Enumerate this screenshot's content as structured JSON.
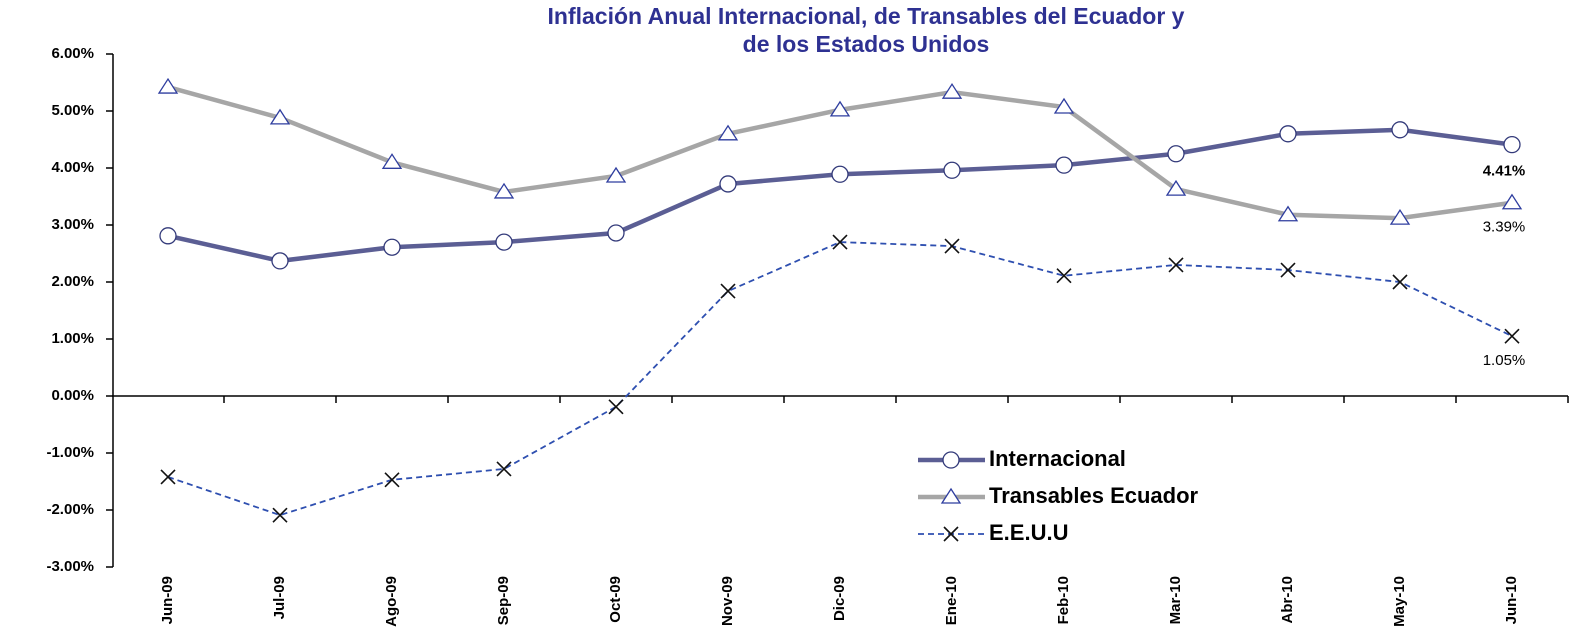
{
  "chart_data": {
    "type": "line",
    "title": [
      "Inflación Anual Internacional, de Transables del Ecuador  y",
      "de los Estados Unidos"
    ],
    "categories": [
      "Jun-09",
      "Jul-09",
      "Ago-09",
      "Sep-09",
      "Oct-09",
      "Nov-09",
      "Dic-09",
      "Ene-10",
      "Feb-10",
      "Mar-10",
      "Abr-10",
      "May-10",
      "Jun-10"
    ],
    "series": [
      {
        "name": "Internacional",
        "color": "#5B5E94",
        "marker": "circle",
        "dashed": false,
        "values": [
          2.81,
          2.37,
          2.61,
          2.7,
          2.86,
          3.72,
          3.89,
          3.96,
          4.05,
          4.25,
          4.6,
          4.67,
          4.41
        ],
        "value_labels": [
          null,
          null,
          null,
          null,
          null,
          null,
          null,
          null,
          null,
          null,
          null,
          null,
          "4.41%"
        ]
      },
      {
        "name": "Transables Ecuador",
        "color": "#A6A6A6",
        "marker": "triangle",
        "dashed": false,
        "values": [
          5.42,
          4.88,
          4.1,
          3.58,
          3.86,
          4.6,
          5.02,
          5.33,
          5.07,
          3.63,
          3.18,
          3.12,
          3.39
        ],
        "value_labels": [
          null,
          null,
          null,
          null,
          null,
          null,
          null,
          null,
          null,
          null,
          null,
          null,
          "3.39%"
        ]
      },
      {
        "name": "E.E.U.U",
        "color": "#2E4FB0",
        "marker": "x",
        "dashed": true,
        "values": [
          -1.42,
          -2.09,
          -1.47,
          -1.28,
          -0.19,
          1.84,
          2.7,
          2.63,
          2.11,
          2.3,
          2.21,
          2.0,
          1.05
        ],
        "value_labels": [
          null,
          null,
          null,
          null,
          null,
          null,
          null,
          null,
          null,
          null,
          null,
          null,
          "1.05%"
        ]
      }
    ],
    "ylim": [
      -3,
      6
    ],
    "yticks": [
      {
        "value": -3,
        "label": "-3.00%"
      },
      {
        "value": -2,
        "label": "-2.00%"
      },
      {
        "value": -1,
        "label": "-1.00%"
      },
      {
        "value": 0,
        "label": "0.00%"
      },
      {
        "value": 1,
        "label": "1.00%"
      },
      {
        "value": 2,
        "label": "2.00%"
      },
      {
        "value": 3,
        "label": "3.00%"
      },
      {
        "value": 4,
        "label": "4.00%"
      },
      {
        "value": 5,
        "label": "5.00%"
      },
      {
        "value": 6,
        "label": "6.00%"
      }
    ],
    "grid": false,
    "legend": "lower right"
  }
}
